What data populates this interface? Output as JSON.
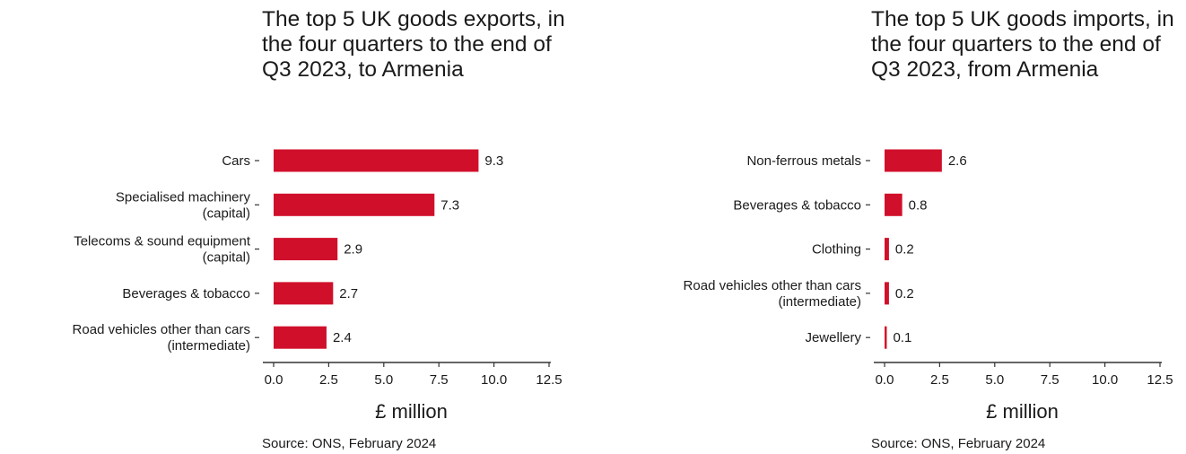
{
  "chart_data": [
    {
      "type": "bar",
      "orientation": "horizontal",
      "title": "The top 5 UK goods exports, in the four quarters to the end of Q3 2023, to Armenia",
      "categories": [
        [
          "Cars"
        ],
        [
          "Specialised machinery",
          "(capital)"
        ],
        [
          "Telecoms & sound equipment",
          "(capital)"
        ],
        [
          "Beverages & tobacco"
        ],
        [
          "Road vehicles other than cars",
          "(intermediate)"
        ]
      ],
      "values": [
        9.3,
        7.3,
        2.9,
        2.7,
        2.4
      ],
      "value_labels": [
        "9.3",
        "7.3",
        "2.9",
        "2.7",
        "2.4"
      ],
      "xlabel": "£ million",
      "ylabel": "",
      "xlim": [
        0,
        12.5
      ],
      "xticks": [
        "0.0",
        "2.5",
        "5.0",
        "7.5",
        "10.0",
        "12.5"
      ],
      "grid": false,
      "bar_color": "#d0102b",
      "source": "Source: ONS, February 2024"
    },
    {
      "type": "bar",
      "orientation": "horizontal",
      "title": "The top 5 UK goods imports, in the four quarters to the end of Q3 2023, from Armenia",
      "categories": [
        [
          "Non-ferrous metals"
        ],
        [
          "Beverages & tobacco"
        ],
        [
          "Clothing"
        ],
        [
          "Road vehicles other than cars",
          "(intermediate)"
        ],
        [
          "Jewellery"
        ]
      ],
      "values": [
        2.6,
        0.8,
        0.2,
        0.2,
        0.1
      ],
      "value_labels": [
        "2.6",
        "0.8",
        "0.2",
        "0.2",
        "0.1"
      ],
      "xlabel": "£ million",
      "ylabel": "",
      "xlim": [
        0,
        12.5
      ],
      "xticks": [
        "0.0",
        "2.5",
        "5.0",
        "7.5",
        "10.0",
        "12.5"
      ],
      "grid": false,
      "bar_color": "#d0102b",
      "source": "Source: ONS, February 2024"
    }
  ]
}
